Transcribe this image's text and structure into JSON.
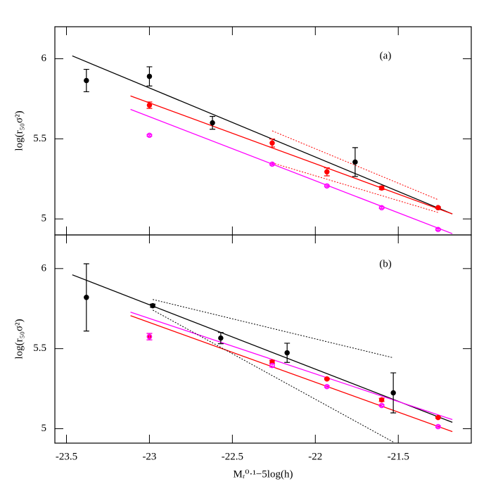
{
  "chart_data": [
    {
      "type": "scatter",
      "title": "(a)",
      "ylabel": "log(r₅₀σ²)",
      "xlim": [
        -23.57,
        -21.06
      ],
      "xticks": [
        -23.5,
        -23,
        -22.5,
        -22,
        -21.5
      ],
      "ylim": [
        4.9,
        6.2
      ],
      "yticks": [
        5,
        5.5,
        6
      ],
      "series": [
        {
          "color": "#000000",
          "marker": "dot",
          "x": [
            -23.38,
            -23.0,
            -22.62,
            -21.76,
            -21.26
          ],
          "values": [
            5.864,
            5.89,
            5.6,
            5.355,
            5.07
          ],
          "errors": [
            0.07,
            0.06,
            0.04,
            0.09,
            0.005
          ]
        },
        {
          "color": "#ff0000",
          "marker": "dot",
          "x": [
            -23.0,
            -22.26,
            -21.93,
            -21.6,
            -21.26
          ],
          "values": [
            5.71,
            5.474,
            5.294,
            5.193,
            5.07
          ],
          "errors": [
            0.02,
            0.025,
            0.025,
            0.01,
            0.005
          ]
        },
        {
          "color": "#ff00ff",
          "marker": "ring",
          "x": [
            -23.0,
            -22.26,
            -21.93,
            -21.6,
            -21.26
          ],
          "values": [
            5.522,
            5.342,
            5.206,
            5.07,
            4.934
          ],
          "errors": [
            0.005,
            0.005,
            0.005,
            0.005,
            0.005
          ]
        }
      ],
      "lines": [
        {
          "color": "#000000",
          "dashed": false,
          "x": [
            -23.465,
            -21.174
          ],
          "values": [
            6.018,
            5.031
          ]
        },
        {
          "color": "#ff0000",
          "dashed": false,
          "x": [
            -23.114,
            -21.174
          ],
          "values": [
            5.768,
            5.031
          ]
        },
        {
          "color": "#ff00ff",
          "dashed": false,
          "x": [
            -23.114,
            -21.174
          ],
          "values": [
            5.684,
            4.908
          ]
        },
        {
          "color": "#ff0000",
          "dashed": true,
          "x": [
            -22.26,
            -21.26
          ],
          "values": [
            5.55,
            5.12
          ]
        },
        {
          "color": "#ff0000",
          "dashed": true,
          "x": [
            -22.26,
            -21.26
          ],
          "values": [
            5.35,
            5.04
          ]
        }
      ]
    },
    {
      "type": "scatter",
      "title": "(b)",
      "ylabel": "log(r₅₀σ²)",
      "xlabel": "Mᵣ⁰·¹−5log(h)",
      "xlim": [
        -23.57,
        -21.06
      ],
      "xticks": [
        -23.5,
        -23,
        -22.5,
        -22,
        -21.5
      ],
      "ylim": [
        4.91,
        6.21
      ],
      "yticks": [
        5,
        5.5,
        6
      ],
      "series": [
        {
          "color": "#000000",
          "marker": "dot",
          "x": [
            -23.38,
            -22.98,
            -22.57,
            -22.17,
            -21.53
          ],
          "values": [
            5.82,
            5.768,
            5.566,
            5.474,
            5.224
          ],
          "errors": [
            0.21,
            0.01,
            0.035,
            0.06,
            0.125
          ]
        },
        {
          "color": "#ff0000",
          "marker": "dot",
          "x": [
            -23.0,
            -22.26,
            -21.93,
            -21.6,
            -21.26
          ],
          "values": [
            5.575,
            5.417,
            5.311,
            5.18,
            5.07
          ],
          "errors": [
            0.02,
            0.01,
            0.005,
            0.01,
            0.005
          ]
        },
        {
          "color": "#ff00ff",
          "marker": "ring",
          "x": [
            -23.0,
            -22.26,
            -21.93,
            -21.6,
            -21.26
          ],
          "values": [
            5.575,
            5.395,
            5.263,
            5.145,
            5.013
          ],
          "errors": [
            0.02,
            0.01,
            0.005,
            0.005,
            0.005
          ]
        }
      ],
      "lines": [
        {
          "color": "#000000",
          "dashed": false,
          "x": [
            -23.465,
            -21.174
          ],
          "values": [
            5.961,
            5.04
          ]
        },
        {
          "color": "#ff0000",
          "dashed": false,
          "x": [
            -23.114,
            -21.174
          ],
          "values": [
            5.706,
            4.982
          ]
        },
        {
          "color": "#ff00ff",
          "dashed": false,
          "x": [
            -23.114,
            -21.174
          ],
          "values": [
            5.728,
            5.057
          ]
        },
        {
          "color": "#000000",
          "dashed": true,
          "x": [
            -22.98,
            -21.53
          ],
          "values": [
            5.807,
            5.443
          ]
        },
        {
          "color": "#000000",
          "dashed": true,
          "x": [
            -22.98,
            -21.53
          ],
          "values": [
            5.741,
            4.917
          ]
        }
      ]
    }
  ]
}
